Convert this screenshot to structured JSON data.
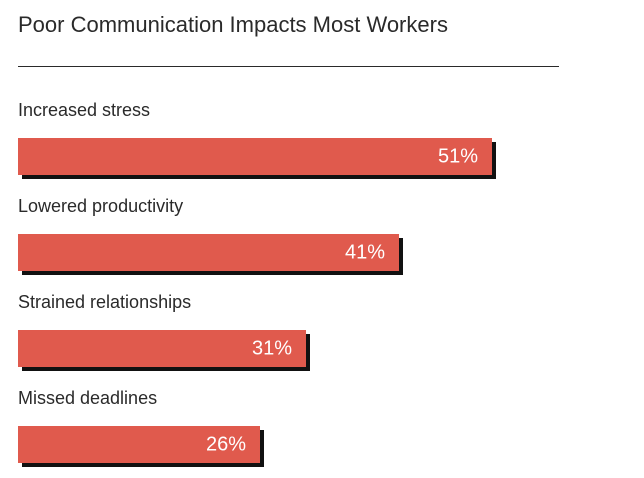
{
  "chart_data": {
    "type": "bar",
    "orientation": "horizontal",
    "title": "Poor Communication Impacts Most Workers",
    "categories": [
      "Increased stress",
      "Lowered productivity",
      "Strained relationships",
      "Missed deadlines"
    ],
    "values": [
      51,
      41,
      31,
      26
    ],
    "value_labels": [
      "51%",
      "41%",
      "31%",
      "26%"
    ],
    "xlim": [
      0,
      100
    ],
    "grid": false,
    "bar_color": "#e05a4d",
    "shadow_color": "#111111"
  }
}
